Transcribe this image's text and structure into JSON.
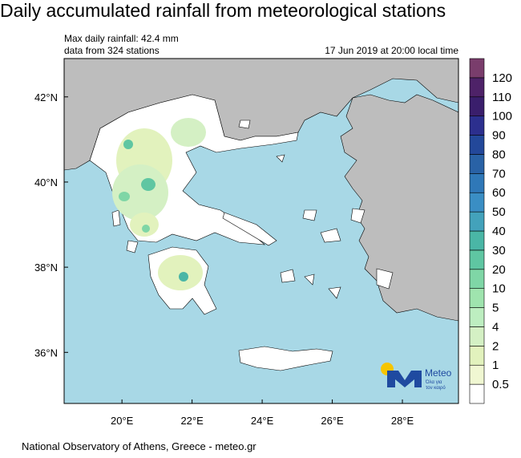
{
  "title": "Daily accumulated rainfall from meteorological stations",
  "info": [
    "Max daily rainfall: 42.4 mm",
    "data from 324 stations"
  ],
  "timestamp": "17 Jun 2019 at 20:00 local time",
  "footer": "National Observatory of Athens, Greece - meteo.gr",
  "logo": {
    "name": "Meteo",
    "slogan": [
      "Όλα για",
      "τον καιρό"
    ]
  },
  "map": {
    "lon_range": [
      18.35,
      29.6
    ],
    "lat_range": [
      34.8,
      42.9
    ],
    "lon_ticks": [
      {
        "value": 20,
        "label": "20°E"
      },
      {
        "value": 22,
        "label": "22°E"
      },
      {
        "value": 24,
        "label": "24°E"
      },
      {
        "value": 26,
        "label": "26°E"
      },
      {
        "value": 28,
        "label": "28°E"
      }
    ],
    "lat_ticks": [
      {
        "value": 42,
        "label": "42°N"
      },
      {
        "value": 40,
        "label": "40°N"
      },
      {
        "value": 38,
        "label": "38°N"
      },
      {
        "value": 36,
        "label": "36°N"
      }
    ]
  },
  "colorbar": {
    "levels": [
      0.5,
      1,
      2,
      4,
      5,
      10,
      20,
      30,
      40,
      50,
      60,
      70,
      80,
      90,
      100,
      110,
      120
    ],
    "colors": [
      "#ffffff",
      "#f0f7d2",
      "#e2f2bd",
      "#d4f0c4",
      "#bdeec0",
      "#9fe4ae",
      "#7fd6a6",
      "#5fc6a2",
      "#4ab6a6",
      "#43a2bb",
      "#3a8ec4",
      "#2f78b8",
      "#2962a6",
      "#23489a",
      "#2c2f8e",
      "#3a1e6c",
      "#4e2268",
      "#7a3d6c"
    ]
  }
}
